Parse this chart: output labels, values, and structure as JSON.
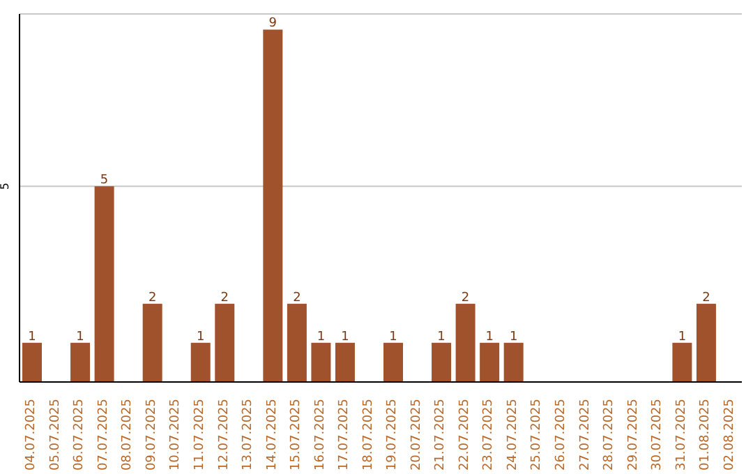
{
  "chart_data": {
    "type": "bar",
    "categories": [
      "04.07.2025",
      "05.07.2025",
      "06.07.2025",
      "07.07.2025",
      "08.07.2025",
      "09.07.2025",
      "10.07.2025",
      "11.07.2025",
      "12.07.2025",
      "13.07.2025",
      "14.07.2025",
      "15.07.2025",
      "16.07.2025",
      "17.07.2025",
      "18.07.2025",
      "19.07.2025",
      "20.07.2025",
      "21.07.2025",
      "22.07.2025",
      "23.07.2025",
      "24.07.2025",
      "25.07.2025",
      "26.07.2025",
      "27.07.2025",
      "28.07.2025",
      "29.07.2025",
      "30.07.2025",
      "31.07.2025",
      "01.08.2025",
      "02.08.2025"
    ],
    "values": [
      1,
      0,
      1,
      5,
      0,
      2,
      0,
      1,
      2,
      0,
      9,
      2,
      1,
      1,
      0,
      1,
      0,
      1,
      2,
      1,
      1,
      0,
      0,
      0,
      0,
      0,
      0,
      1,
      2,
      0
    ],
    "value_labels": [
      "1",
      null,
      "1",
      "5",
      null,
      "2",
      null,
      "1",
      "2",
      null,
      "9",
      "2",
      "1",
      "1",
      null,
      "1",
      null,
      "1",
      "2",
      "1",
      "1",
      null,
      null,
      null,
      null,
      null,
      null,
      "1",
      "2",
      null
    ],
    "color": "#a0522d",
    "ylim": [
      0,
      9.4
    ],
    "yticks": [
      5
    ],
    "grid": "y"
  }
}
